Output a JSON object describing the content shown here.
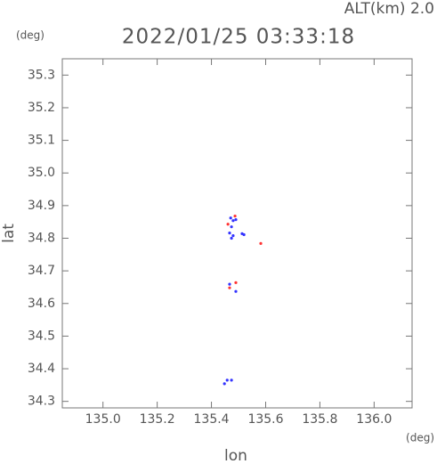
{
  "chart_data": {
    "type": "scatter",
    "title": "2022/01/25 03:33:18",
    "annotation": "ALT(km) 2.0",
    "x_label": "lon",
    "y_label": "lat",
    "x_unit": "(deg)",
    "y_unit": "(deg)",
    "xlim": [
      134.85,
      136.14
    ],
    "ylim": [
      34.28,
      35.35
    ],
    "xticks": [
      {
        "value": 135,
        "label": "135.0"
      },
      135.2,
      135.4,
      135.6,
      135.8,
      {
        "value": 136,
        "label": "136.0"
      }
    ],
    "yticks": [
      34.3,
      34.4,
      34.5,
      34.6,
      34.7,
      34.8,
      34.9,
      {
        "value": 35,
        "label": "35.0"
      },
      35.1,
      35.2,
      35.3
    ],
    "series": [
      {
        "color": "#3333ff",
        "x": [
          135.471,
          135.48,
          135.49,
          135.474,
          135.467,
          135.48,
          135.474,
          135.513,
          135.52,
          135.467,
          135.49,
          135.448,
          135.458,
          135.474
        ],
        "values": [
          34.862,
          34.854,
          34.857,
          34.835,
          34.816,
          34.808,
          34.8,
          34.814,
          34.811,
          34.659,
          34.637,
          34.354,
          34.365,
          34.365
        ]
      },
      {
        "color": "#ff3333",
        "x": [
          135.487,
          135.461,
          135.582,
          135.49,
          135.467
        ],
        "values": [
          34.868,
          34.843,
          34.784,
          34.664,
          34.648
        ]
      }
    ]
  }
}
